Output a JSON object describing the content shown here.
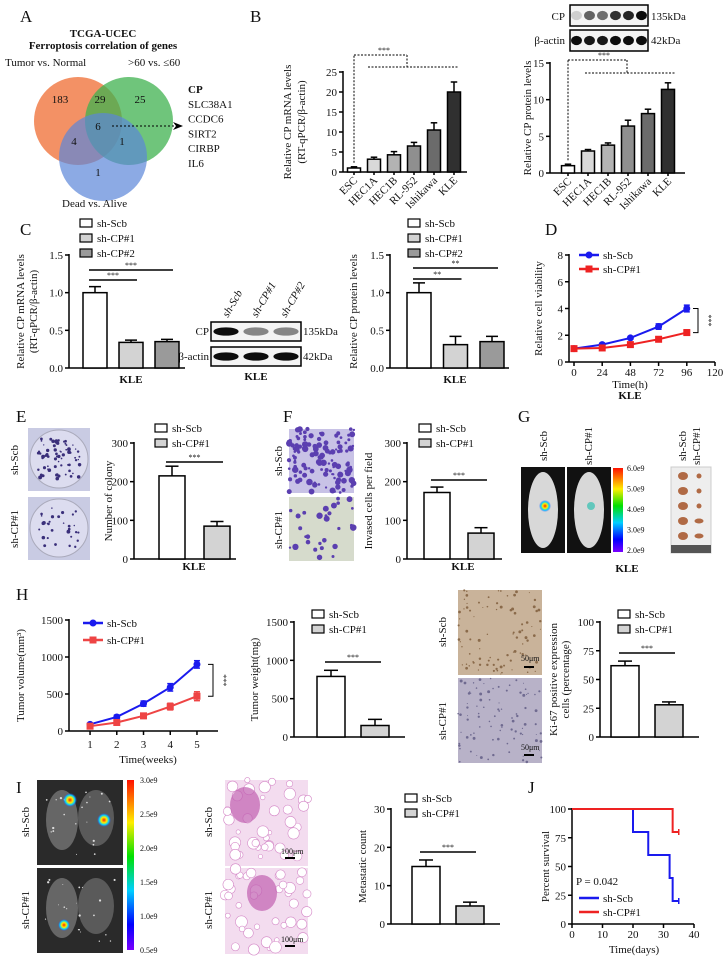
{
  "panel_letters": [
    "A",
    "B",
    "C",
    "D",
    "E",
    "F",
    "G",
    "H",
    "I",
    "J"
  ],
  "venn": {
    "title": [
      "TCGA-UCEC",
      "Ferroptosis correlation of genes"
    ],
    "sets": [
      {
        "label": "Tumor vs. Normal",
        "color": "#f0763f"
      },
      {
        "label": ">60 vs. ≤60",
        "color": "#3fb24f"
      },
      {
        "label": "Dead vs. Alive",
        "color": "#5b86d8"
      }
    ],
    "regions": {
      "tumor_only": "183",
      "tumor_and_age": "29",
      "age_only": "25",
      "all_three": "6",
      "tumor_and_dead": "4",
      "age_and_dead": "1",
      "dead_only": "1"
    },
    "genes": [
      "CP",
      "SLC38A1",
      "CCDC6",
      "SIRT2",
      "CIRBP",
      "IL6"
    ],
    "highlight_color": "#e02020"
  },
  "blot_B": {
    "rows": [
      "CP",
      "β-actin"
    ],
    "sizes": [
      "135kDa",
      "42kDa"
    ]
  },
  "blot_C": {
    "lanes": [
      "sh-Scb",
      "sh-CP#1",
      "sh-CP#2"
    ],
    "rows": [
      "CP",
      "β-actin"
    ],
    "sizes": [
      "135kDa",
      "42kDa"
    ],
    "group": "KLE"
  },
  "images": {
    "E_rows": [
      "sh-Scb",
      "sh-CP#1"
    ],
    "F_rows": [
      "sh-Scb",
      "sh-CP#1"
    ],
    "G_columns": [
      "sh-Scb",
      "sh-CP#1"
    ],
    "G_colorbar": [
      "6.0e9",
      "5.0e9",
      "4.0e9",
      "3.0e9",
      "2.0e9"
    ],
    "G_tumor_columns": [
      "sh-Scb",
      "sh-CP#1"
    ],
    "G_group": "KLE",
    "H_ihc_rows": [
      "sh-Scb",
      "sh-CP#1"
    ],
    "H_scale": "50μm",
    "I_rows": [
      "sh-Scb",
      "sh-CP#1"
    ],
    "I_colorbar": [
      "3.0e9",
      "2.5e9",
      "2.0e9",
      "1.5e9",
      "1.0e9",
      "0.5e9"
    ],
    "I_he_rows": [
      "sh-Scb",
      "sh-CP#1"
    ],
    "I_scale": "100μm"
  },
  "chart_data": [
    {
      "panel": "B",
      "type": "bar",
      "ylabel": [
        "Relative CP mRNA levels",
        "(RT-qPCR/β-actin)"
      ],
      "ylim": [
        0,
        25
      ],
      "yticks": [
        "0",
        "5",
        "10",
        "15",
        "20",
        "25"
      ],
      "categories": [
        "ESC",
        "HEC1A",
        "HEC1B",
        "RL-952",
        "Ishikawa",
        "KLE"
      ],
      "values": [
        1.0,
        3.2,
        4.3,
        6.5,
        10.5,
        20.0
      ],
      "errors": [
        0.3,
        0.5,
        0.8,
        0.9,
        1.8,
        2.5
      ],
      "colors": [
        "#ffffff",
        "#d9d9d9",
        "#b3b3b3",
        "#8f8f8f",
        "#6b6b6b",
        "#303030"
      ],
      "significance": [
        {
          "label": "***",
          "from": "ESC",
          "to": "others"
        }
      ]
    },
    {
      "panel": "B",
      "type": "bar",
      "ylabel": [
        "Relative CP protein levels"
      ],
      "ylim": [
        0,
        15
      ],
      "yticks": [
        "0",
        "5",
        "10",
        "15"
      ],
      "categories": [
        "ESC",
        "HEC1A",
        "HEC1B",
        "RL-952",
        "Ishikawa",
        "KLE"
      ],
      "values": [
        1.0,
        3.0,
        3.8,
        6.4,
        8.1,
        11.4
      ],
      "errors": [
        0.2,
        0.2,
        0.3,
        0.8,
        0.6,
        0.9
      ],
      "colors": [
        "#ffffff",
        "#d9d9d9",
        "#b3b3b3",
        "#8f8f8f",
        "#6b6b6b",
        "#303030"
      ],
      "significance": [
        {
          "label": "***",
          "from": "ESC",
          "to": "others"
        }
      ]
    },
    {
      "panel": "C",
      "type": "bar",
      "ylabel": [
        "Relative CP mRNA levels",
        "(RT-qPCR/β-actin)"
      ],
      "xlabel": "KLE",
      "ylim": [
        0,
        1.5
      ],
      "yticks": [
        "0.0",
        "0.5",
        "1.0",
        "1.5"
      ],
      "categories": [
        "sh-Scb",
        "sh-CP#1",
        "sh-CP#2"
      ],
      "values": [
        1.0,
        0.34,
        0.35
      ],
      "errors": [
        0.08,
        0.03,
        0.03
      ],
      "colors": [
        "#ffffff",
        "#d3d3d3",
        "#9a9a9a"
      ],
      "legend": "top",
      "significance": [
        {
          "label": "***",
          "from": "sh-Scb",
          "to": "sh-CP#1"
        },
        {
          "label": "***",
          "from": "sh-Scb",
          "to": "sh-CP#2"
        }
      ]
    },
    {
      "panel": "C",
      "type": "bar",
      "ylabel": [
        "Relative CP protein levels"
      ],
      "xlabel": "KLE",
      "ylim": [
        0,
        1.5
      ],
      "yticks": [
        "0.0",
        "0.5",
        "1.0",
        "1.5"
      ],
      "categories": [
        "sh-Scb",
        "sh-CP#1",
        "sh-CP#2"
      ],
      "values": [
        1.0,
        0.31,
        0.35
      ],
      "errors": [
        0.13,
        0.11,
        0.07
      ],
      "colors": [
        "#ffffff",
        "#d3d3d3",
        "#9a9a9a"
      ],
      "legend": "top",
      "significance": [
        {
          "label": "**",
          "from": "sh-Scb",
          "to": "sh-CP#1"
        },
        {
          "label": "**",
          "from": "sh-Scb",
          "to": "sh-CP#2"
        }
      ]
    },
    {
      "panel": "E",
      "type": "bar",
      "ylabel": [
        "Number of colony"
      ],
      "xlabel": "KLE",
      "ylim": [
        0,
        300
      ],
      "yticks": [
        "0",
        "100",
        "200",
        "300"
      ],
      "categories": [
        "sh-Scb",
        "sh-CP#1"
      ],
      "values": [
        215,
        85
      ],
      "errors": [
        25,
        12
      ],
      "colors": [
        "#ffffff",
        "#d3d3d3"
      ],
      "legend": "top",
      "significance": [
        {
          "label": "***",
          "from": "sh-Scb",
          "to": "sh-CP#1"
        }
      ]
    },
    {
      "panel": "F",
      "type": "bar",
      "ylabel": [
        "Invased cells per field"
      ],
      "xlabel": "KLE",
      "ylim": [
        0,
        300
      ],
      "yticks": [
        "0",
        "100",
        "200",
        "300"
      ],
      "categories": [
        "sh-Scb",
        "sh-CP#1"
      ],
      "values": [
        172,
        67
      ],
      "errors": [
        14,
        14
      ],
      "colors": [
        "#ffffff",
        "#d3d3d3"
      ],
      "legend": "top",
      "significance": [
        {
          "label": "***",
          "from": "sh-Scb",
          "to": "sh-CP#1"
        }
      ]
    },
    {
      "panel": "H",
      "type": "bar",
      "ylabel": [
        "Tumor weight(mg)"
      ],
      "ylim": [
        0,
        1500
      ],
      "yticks": [
        "0",
        "500",
        "1000",
        "1500"
      ],
      "categories": [
        "sh-Scb",
        "sh-CP#1"
      ],
      "values": [
        790,
        150
      ],
      "errors": [
        80,
        80
      ],
      "colors": [
        "#ffffff",
        "#d3d3d3"
      ],
      "legend": "top",
      "significance": [
        {
          "label": "***",
          "from": "sh-Scb",
          "to": "sh-CP#1"
        }
      ]
    },
    {
      "panel": "H",
      "type": "bar",
      "ylabel": [
        "Ki-67 positive expression",
        "cells (percentage)"
      ],
      "ylim": [
        0,
        100
      ],
      "yticks": [
        "0",
        "25",
        "50",
        "75",
        "100"
      ],
      "categories": [
        "sh-Scb",
        "sh-CP#1"
      ],
      "values": [
        62,
        28
      ],
      "errors": [
        4,
        2.5
      ],
      "colors": [
        "#ffffff",
        "#d3d3d3"
      ],
      "legend": "top",
      "significance": [
        {
          "label": "***",
          "from": "sh-Scb",
          "to": "sh-CP#1"
        }
      ]
    },
    {
      "panel": "I",
      "type": "bar",
      "ylabel": [
        "Metastatic count"
      ],
      "ylim": [
        0,
        30
      ],
      "yticks": [
        "0",
        "10",
        "20",
        "30"
      ],
      "categories": [
        "sh-Scb",
        "sh-CP#1"
      ],
      "values": [
        15,
        4.7
      ],
      "errors": [
        1.7,
        1.0
      ],
      "colors": [
        "#ffffff",
        "#d3d3d3"
      ],
      "legend": "top",
      "significance": [
        {
          "label": "***",
          "from": "sh-Scb",
          "to": "sh-CP#1"
        }
      ]
    },
    {
      "panel": "D",
      "type": "line",
      "ylabel": "Relative cell viability",
      "xlabel": "Time(h)",
      "group": "KLE",
      "xlim": [
        0,
        120
      ],
      "ylim": [
        0,
        8
      ],
      "xticks": [
        "0",
        "24",
        "48",
        "72",
        "96",
        "120"
      ],
      "yticks": [
        "0",
        "2",
        "4",
        "6",
        "8"
      ],
      "x": [
        0,
        24,
        48,
        72,
        96
      ],
      "series": [
        {
          "name": "sh-Scb",
          "color": "#1a1aee",
          "marker": "circle",
          "values": [
            1.0,
            1.3,
            1.8,
            2.65,
            4.0
          ],
          "errors": [
            0.05,
            0.08,
            0.1,
            0.2,
            0.25
          ]
        },
        {
          "name": "sh-CP#1",
          "color": "#ee2222",
          "marker": "square",
          "values": [
            1.0,
            1.05,
            1.3,
            1.7,
            2.2
          ],
          "errors": [
            0.05,
            0.06,
            0.08,
            0.1,
            0.2
          ]
        }
      ],
      "legend": "top-left",
      "significance": "***"
    },
    {
      "panel": "H",
      "type": "line",
      "ylabel": "Tumor volume(mm³)",
      "xlabel": "Time(weeks)",
      "xlim": [
        0.1,
        5.6
      ],
      "ylim": [
        0,
        1500
      ],
      "xticks": [
        "1",
        "2",
        "3",
        "4",
        "5"
      ],
      "yticks": [
        "0",
        "500",
        "1000",
        "1500"
      ],
      "x": [
        1,
        2,
        3,
        4,
        5
      ],
      "series": [
        {
          "name": "sh-Scb",
          "color": "#1a1aee",
          "marker": "circle",
          "values": [
            90,
            190,
            370,
            590,
            900
          ],
          "errors": [
            15,
            25,
            35,
            50,
            50
          ]
        },
        {
          "name": "sh-CP#1",
          "color": "#ee4444",
          "marker": "square",
          "values": [
            65,
            115,
            205,
            330,
            470
          ],
          "errors": [
            12,
            20,
            35,
            45,
            60
          ]
        }
      ],
      "legend": "top-left",
      "significance": "***"
    },
    {
      "panel": "J",
      "type": "line",
      "ylabel": "Percent survival",
      "xlabel": "Time(days)",
      "xlim": [
        0,
        40
      ],
      "ylim": [
        0,
        100
      ],
      "xticks": [
        "0",
        "10",
        "20",
        "30",
        "40"
      ],
      "yticks": [
        "0",
        "25",
        "50",
        "75",
        "100"
      ],
      "annotation": "P = 0.042",
      "series": [
        {
          "name": "sh-Scb",
          "color": "#1a1aee",
          "steps": [
            [
              0,
              100
            ],
            [
              20,
              100
            ],
            [
              20,
              80
            ],
            [
              25,
              80
            ],
            [
              25,
              60
            ],
            [
              32,
              60
            ],
            [
              32,
              40
            ],
            [
              33,
              40
            ],
            [
              33,
              20
            ],
            [
              35,
              20
            ]
          ]
        },
        {
          "name": "sh-CP#1",
          "color": "#ee2222",
          "steps": [
            [
              0,
              100
            ],
            [
              33,
              100
            ],
            [
              33,
              80
            ],
            [
              35,
              80
            ]
          ]
        }
      ],
      "legend": "bottom-left"
    }
  ]
}
